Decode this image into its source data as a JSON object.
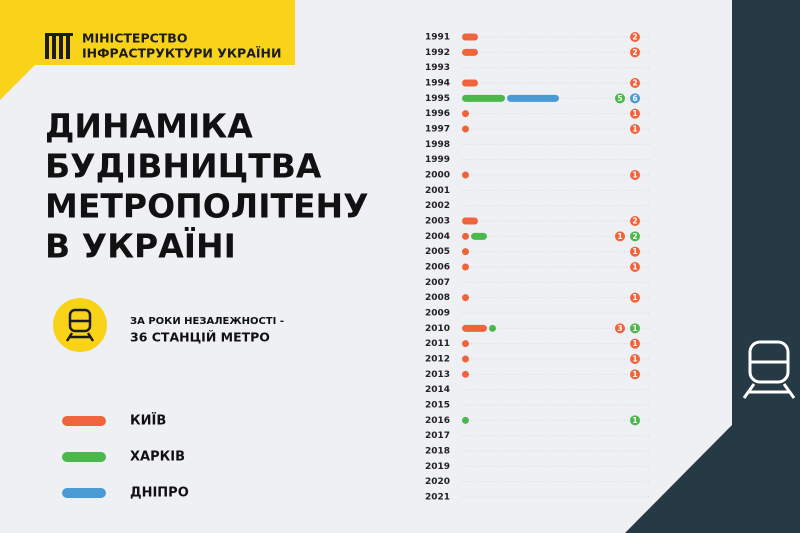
{
  "header": {
    "org_lines": [
      "МІНІСТЕРСТВО",
      "ІНФРАСТРУКТУРИ УКРАЇНИ"
    ]
  },
  "chart_data": {
    "type": "bar",
    "orientation": "horizontal",
    "stacked": true,
    "title_lines": [
      "ДИНАМІКА",
      "БУДІВНИЦТВА",
      "МЕТРОПОЛІТЕНУ",
      "В УКРАЇНІ"
    ],
    "annotation": [
      "ЗА РОКИ НЕЗАЛЕЖНОСТІ -",
      "36 СТАНЦІЙ МЕТРО"
    ],
    "categories": [
      "1991",
      "1992",
      "1993",
      "1994",
      "1995",
      "1996",
      "1997",
      "1998",
      "1999",
      "2000",
      "2001",
      "2002",
      "2003",
      "2004",
      "2005",
      "2006",
      "2007",
      "2008",
      "2009",
      "2010",
      "2011",
      "2012",
      "2013",
      "2014",
      "2015",
      "2016",
      "2017",
      "2018",
      "2019",
      "2020",
      "2021"
    ],
    "series": [
      {
        "name": "КИЇВ",
        "color": "#f0643c",
        "values": [
          2,
          2,
          0,
          2,
          0,
          1,
          1,
          0,
          0,
          1,
          0,
          0,
          2,
          1,
          1,
          1,
          0,
          1,
          0,
          3,
          1,
          1,
          1,
          0,
          0,
          0,
          0,
          0,
          0,
          0,
          0
        ]
      },
      {
        "name": "ХАРКІВ",
        "color": "#4cb84c",
        "values": [
          0,
          0,
          0,
          0,
          5,
          0,
          0,
          0,
          0,
          0,
          0,
          0,
          0,
          2,
          0,
          0,
          0,
          0,
          0,
          1,
          0,
          0,
          0,
          0,
          0,
          1,
          0,
          0,
          0,
          0,
          0
        ]
      },
      {
        "name": "ДНІПРО",
        "color": "#4a9ad4",
        "values": [
          0,
          0,
          0,
          0,
          6,
          0,
          0,
          0,
          0,
          0,
          0,
          0,
          0,
          0,
          0,
          0,
          0,
          0,
          0,
          0,
          0,
          0,
          0,
          0,
          0,
          0,
          0,
          0,
          0,
          0,
          0
        ]
      }
    ]
  }
}
